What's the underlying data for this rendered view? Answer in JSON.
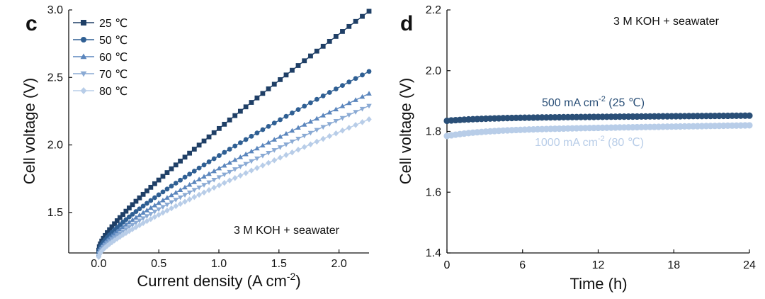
{
  "chart_data": [
    {
      "panel": "c",
      "type": "scatter",
      "title": "",
      "xlabel": "Current density (A cm",
      "xlabel_sup": "-2",
      "xlabel_end": ")",
      "ylabel": "Cell voltage (V)",
      "xlim": [
        -0.25,
        2.25
      ],
      "ylim": [
        1.2,
        3.0
      ],
      "xticks": [
        "0.0",
        "0.5",
        "1.0",
        "1.5",
        "2.0"
      ],
      "yticks": [
        "1.5",
        "2.0",
        "2.5",
        "3.0"
      ],
      "annotation": "3 M KOH + seawater",
      "legend_position": "top-left",
      "series": [
        {
          "name": "25 ℃",
          "color": "#1f3f66",
          "marker": "square",
          "v0": 1.22,
          "a": 0.34,
          "b": 0.56,
          "c": 0.0
        },
        {
          "name": "50 ℃",
          "color": "#2f5f93",
          "marker": "circle",
          "v0": 1.2,
          "a": 0.33,
          "b": 0.4,
          "c": -0.01
        },
        {
          "name": "60 ℃",
          "color": "#5b86bd",
          "marker": "triangle-up",
          "v0": 1.19,
          "a": 0.3,
          "b": 0.34,
          "c": -0.005
        },
        {
          "name": "70 ℃",
          "color": "#8aaad4",
          "marker": "triangle-down",
          "v0": 1.18,
          "a": 0.26,
          "b": 0.32,
          "c": 0.0
        },
        {
          "name": "80 ℃",
          "color": "#b8cde8",
          "marker": "diamond",
          "v0": 1.17,
          "a": 0.23,
          "b": 0.3,
          "c": 0.0
        }
      ]
    },
    {
      "panel": "d",
      "type": "scatter",
      "title": "",
      "xlabel": "Time (h)",
      "ylabel": "Cell voltage (V)",
      "xlim": [
        0,
        24
      ],
      "ylim": [
        1.4,
        2.2
      ],
      "xticks": [
        "0",
        "6",
        "12",
        "18",
        "24"
      ],
      "yticks": [
        "1.4",
        "1.6",
        "1.8",
        "2.0",
        "2.2"
      ],
      "annotation": "3 M KOH + seawater",
      "series": [
        {
          "name": "500 mA cm",
          "sup": "-2",
          "suffix": " (25 ℃)",
          "color": "#2a4f77",
          "v_start": 1.835,
          "v_end": 1.852
        },
        {
          "name": "1000 mA cm",
          "sup": "-2",
          "suffix": " (80 ℃)",
          "color": "#b8cde8",
          "v_start": 1.785,
          "v_end": 1.82
        }
      ]
    }
  ]
}
